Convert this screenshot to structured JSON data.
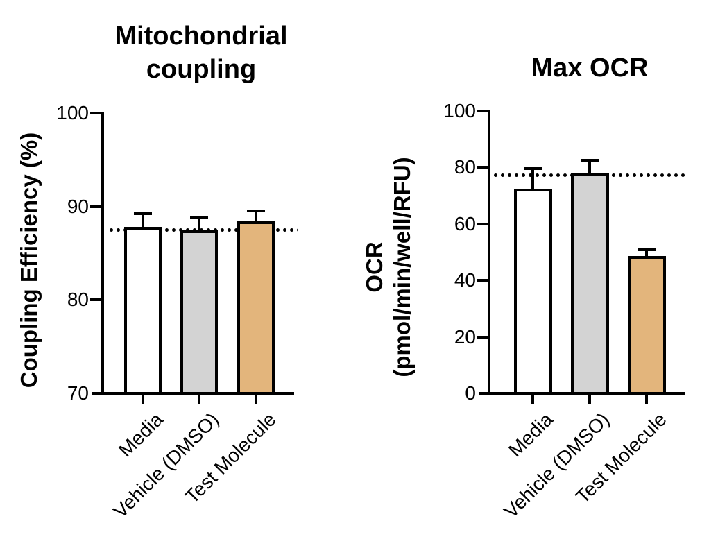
{
  "figure": {
    "background": "#ffffff",
    "axis_color": "#000000",
    "text_color": "#000000"
  },
  "chart_data": [
    {
      "type": "bar",
      "title": "Mitochondrial coupling",
      "ylabel": "Coupling Efficiency (%)",
      "ylabel_lines": [
        "Coupling Efficiency (%)"
      ],
      "xlabel": "",
      "categories": [
        "Media",
        "Vehicle (DMSO)",
        "Test Molecule"
      ],
      "values": [
        87.7,
        87.3,
        88.3
      ],
      "errors_upper": [
        1.5,
        1.5,
        1.2
      ],
      "bar_colors": [
        "#ffffff",
        "#d3d3d3",
        "#e3b57c"
      ],
      "bar_edge_color": "#000000",
      "ylim": [
        70,
        100
      ],
      "yticks": [
        100,
        90,
        80,
        70
      ],
      "reference_line": 87.5,
      "reference_line_style": "dotted",
      "grid": false,
      "legend": "none"
    },
    {
      "type": "bar",
      "title": "Max OCR",
      "ylabel": "OCR (pmol/min/well/RFU)",
      "ylabel_lines": [
        "OCR",
        "(pmol/min/well/RFU)"
      ],
      "xlabel": "",
      "categories": [
        "Media",
        "Vehicle (DMSO)",
        "Test Molecule"
      ],
      "values": [
        72.0,
        77.4,
        48.2
      ],
      "errors_upper": [
        7.6,
        5.2,
        2.7
      ],
      "bar_colors": [
        "#ffffff",
        "#d3d3d3",
        "#e3b57c"
      ],
      "bar_edge_color": "#000000",
      "ylim": [
        0,
        100
      ],
      "yticks": [
        100,
        80,
        60,
        40,
        20,
        0
      ],
      "reference_line": 77.4,
      "reference_line_style": "dotted",
      "grid": false,
      "legend": "none"
    }
  ]
}
